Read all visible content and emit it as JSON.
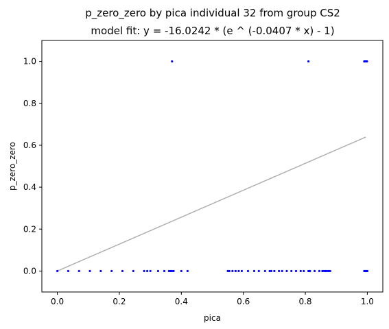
{
  "chart_data": {
    "type": "scatter",
    "title": "p_zero_zero by pica individual 32 from group CS2",
    "subtitle": "model fit: y = -16.0242 * (e ^ (-0.0407 * x) - 1)",
    "xlabel": "pica",
    "ylabel": "p_zero_zero",
    "xlim": [
      -0.05,
      1.05
    ],
    "ylim": [
      -0.1,
      1.1
    ],
    "xticks": [
      "0.0",
      "0.2",
      "0.4",
      "0.6",
      "0.8",
      "1.0"
    ],
    "yticks": [
      "0.0",
      "0.2",
      "0.4",
      "0.6",
      "0.8",
      "1.0"
    ],
    "grid": false,
    "legend": "none",
    "colors": {
      "points": "#0000ff",
      "fit_line": "#b0b0b0"
    },
    "series": [
      {
        "x": [
          0.0,
          0.035,
          0.07,
          0.105,
          0.14,
          0.175,
          0.21,
          0.245,
          0.28,
          0.29,
          0.3,
          0.325,
          0.345,
          0.36,
          0.365,
          0.37,
          0.375,
          0.4,
          0.42,
          0.55,
          0.555,
          0.565,
          0.575,
          0.585,
          0.595,
          0.615,
          0.635,
          0.65,
          0.67,
          0.685,
          0.69,
          0.7,
          0.715,
          0.725,
          0.74,
          0.755,
          0.77,
          0.785,
          0.795,
          0.81,
          0.812,
          0.815,
          0.83,
          0.845,
          0.855,
          0.86,
          0.865,
          0.87,
          0.875,
          0.88,
          0.99,
          0.992,
          0.994,
          0.996,
          0.998,
          1.0,
          0.37,
          0.81,
          0.99,
          0.993,
          0.996,
          0.999
        ],
        "y": [
          0,
          0,
          0,
          0,
          0,
          0,
          0,
          0,
          0,
          0,
          0,
          0,
          0,
          0,
          0,
          0,
          0,
          0,
          0,
          0,
          0,
          0,
          0,
          0,
          0,
          0,
          0,
          0,
          0,
          0,
          0,
          0,
          0,
          0,
          0,
          0,
          0,
          0,
          0,
          0,
          0,
          0,
          0,
          0,
          0,
          0,
          0,
          0,
          0,
          0,
          0,
          0,
          0,
          0,
          0,
          0,
          1,
          1,
          1,
          1,
          1,
          1
        ]
      }
    ],
    "fit_line": {
      "x": [
        0.0,
        0.995
      ],
      "y": [
        0.0,
        0.639
      ]
    }
  }
}
